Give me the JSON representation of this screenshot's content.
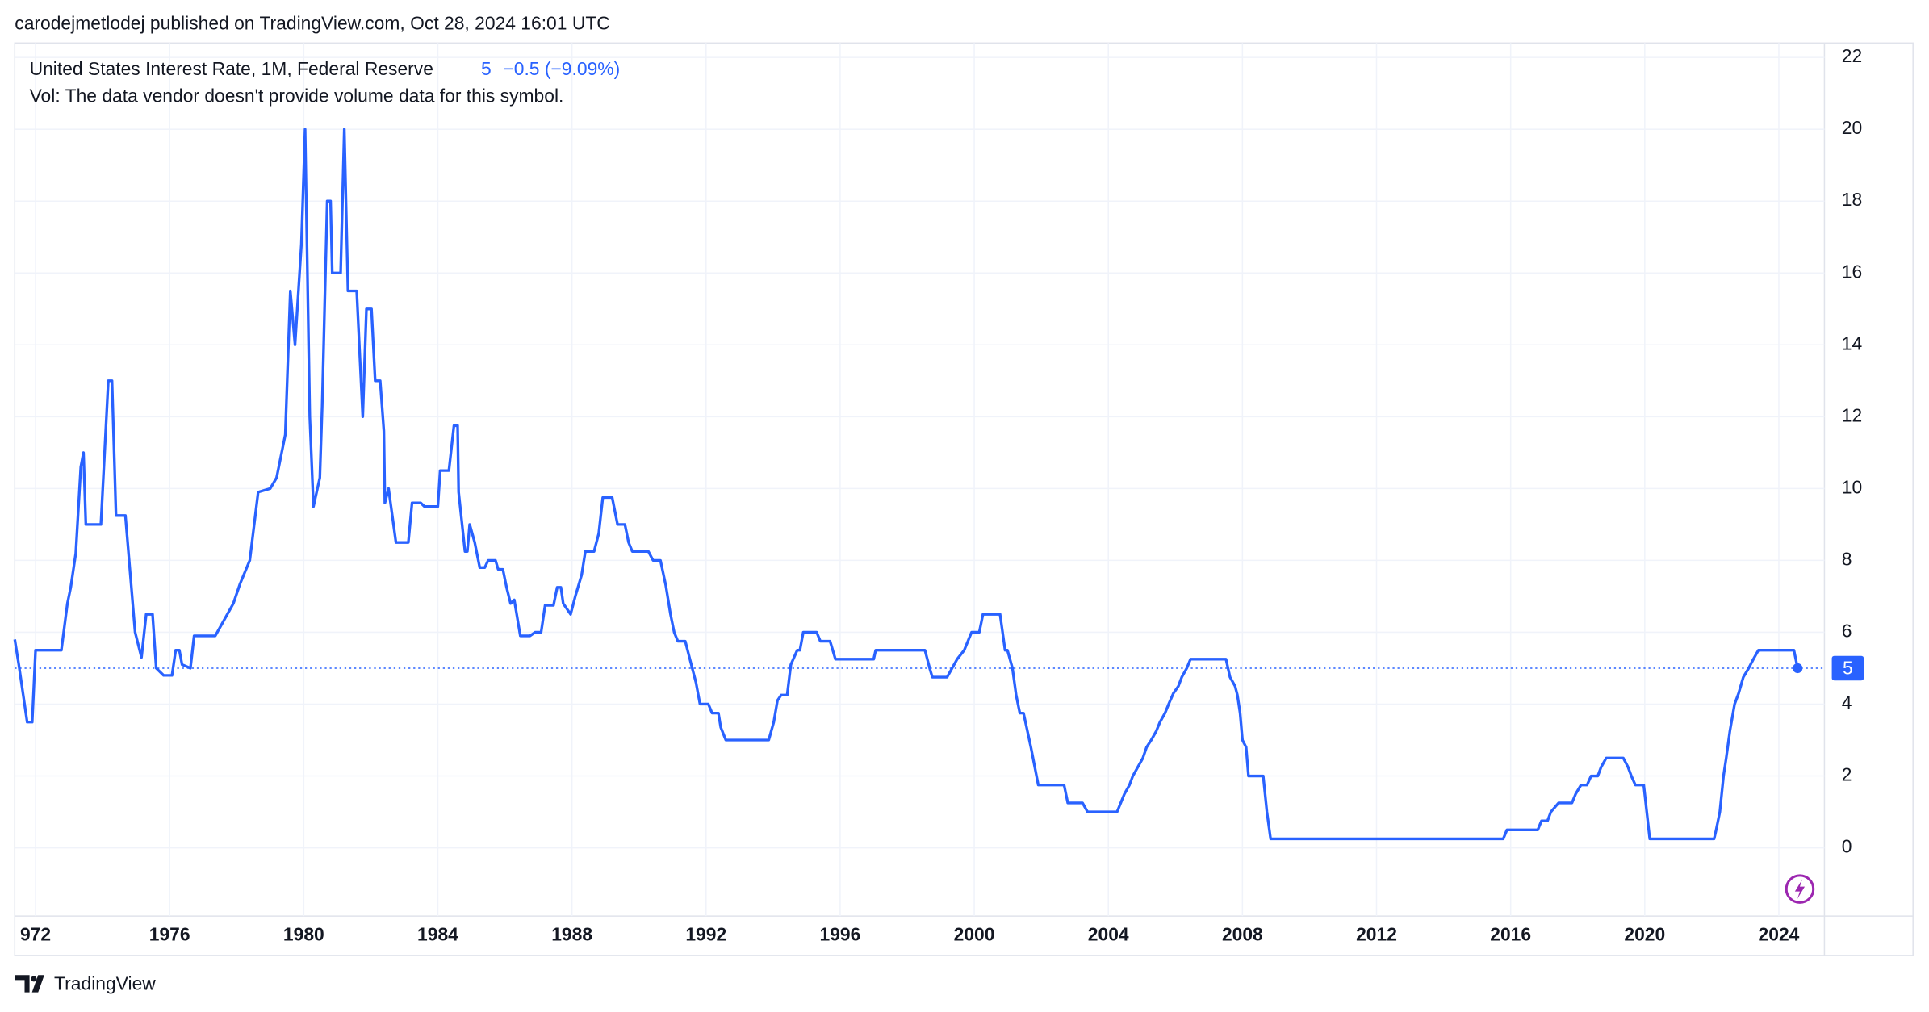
{
  "header": "carodejmetlodej published on TradingView.com, Oct 28, 2024 16:01 UTC",
  "footer": "TradingView",
  "chart_data": {
    "type": "line",
    "title": "United States Interest Rate, 1M, Federal Reserve",
    "change": "−0.5 (−9.09%)",
    "note": "Vol: The data vendor doesn't provide volume data for this symbol.",
    "x": [
      1971.38,
      1971.5,
      1971.75,
      1971.9,
      1972.0,
      1972.77,
      1972.95,
      1973.05,
      1973.2,
      1973.35,
      1973.43,
      1973.5,
      1973.95,
      1974.17,
      1974.28,
      1974.4,
      1974.68,
      1974.97,
      1975.16,
      1975.3,
      1975.49,
      1975.6,
      1975.82,
      1976.07,
      1976.18,
      1976.29,
      1976.37,
      1976.62,
      1976.73,
      1977.36,
      1977.72,
      1977.9,
      1978.1,
      1978.39,
      1978.64,
      1979.0,
      1979.19,
      1979.45,
      1979.6,
      1979.74,
      1979.93,
      1980.04,
      1980.18,
      1980.29,
      1980.48,
      1980.55,
      1980.7,
      1980.8,
      1980.85,
      1981.1,
      1981.21,
      1981.32,
      1981.58,
      1981.76,
      1981.87,
      1982.02,
      1982.13,
      1982.28,
      1982.39,
      1982.42,
      1982.53,
      1982.75,
      1983.12,
      1983.23,
      1983.49,
      1983.6,
      1984.0,
      1984.07,
      1984.33,
      1984.48,
      1984.59,
      1984.62,
      1984.81,
      1984.88,
      1984.95,
      1985.1,
      1985.25,
      1985.4,
      1985.5,
      1985.72,
      1985.8,
      1985.94,
      1986.05,
      1986.17,
      1986.28,
      1986.46,
      1986.75,
      1986.9,
      1987.08,
      1987.2,
      1987.45,
      1987.56,
      1987.67,
      1987.74,
      1987.96,
      1988.1,
      1988.29,
      1988.4,
      1988.66,
      1988.8,
      1988.92,
      1989.2,
      1989.36,
      1989.58,
      1989.69,
      1989.8,
      1990.28,
      1990.42,
      1990.64,
      1990.8,
      1990.94,
      1991.05,
      1991.16,
      1991.38,
      1991.56,
      1991.7,
      1991.82,
      1992.07,
      1992.18,
      1992.37,
      1992.44,
      1992.59,
      1993.87,
      1994.02,
      1994.13,
      1994.24,
      1994.42,
      1994.53,
      1994.72,
      1994.8,
      1994.9,
      1995.3,
      1995.41,
      1995.7,
      1995.86,
      1997.0,
      1997.06,
      1998.53,
      1998.67,
      1998.75,
      1999.19,
      1999.34,
      1999.49,
      1999.7,
      1999.92,
      2000.15,
      2000.26,
      2000.77,
      2000.92,
      2000.99,
      2001.14,
      2001.25,
      2001.36,
      2001.47,
      2001.69,
      2001.91,
      2002.68,
      2002.79,
      2003.23,
      2003.38,
      2004.26,
      2004.37,
      2004.48,
      2004.63,
      2004.73,
      2004.88,
      2005.03,
      2005.14,
      2005.28,
      2005.43,
      2005.54,
      2005.69,
      2005.8,
      2005.94,
      2006.09,
      2006.19,
      2006.34,
      2006.45,
      2007.51,
      2007.63,
      2007.78,
      2007.85,
      2007.93,
      2008.0,
      2008.11,
      2008.18,
      2008.62,
      2008.73,
      2008.84,
      2015.78,
      2015.89,
      2016.81,
      2016.92,
      2017.1,
      2017.2,
      2017.43,
      2017.83,
      2017.94,
      2018.1,
      2018.28,
      2018.4,
      2018.6,
      2018.7,
      2018.85,
      2019.36,
      2019.5,
      2019.6,
      2019.72,
      2019.97,
      2020.15,
      2022.07,
      2022.13,
      2022.24,
      2022.35,
      2022.43,
      2022.54,
      2022.68,
      2022.8,
      2022.94,
      2023.1,
      2023.24,
      2023.39,
      2024.45,
      2024.56
    ],
    "series": [
      {
        "color": "#2962ff",
        "values": [
          5.8,
          5.1,
          3.5,
          3.5,
          5.5,
          5.5,
          6.8,
          7.25,
          8.2,
          10.6,
          11,
          9,
          9,
          13,
          13,
          9.25,
          9.25,
          6,
          5.3,
          6.5,
          6.5,
          5,
          4.8,
          4.8,
          5.5,
          5.5,
          5.1,
          5,
          5.9,
          5.9,
          6.5,
          6.8,
          7.35,
          8,
          9.9,
          10,
          10.3,
          11.5,
          15.5,
          14,
          16.8,
          20,
          12,
          9.5,
          10.3,
          12.3,
          18,
          18,
          16,
          16,
          20,
          15.5,
          15.5,
          12,
          15,
          15,
          13,
          13,
          11.6,
          9.6,
          10,
          8.5,
          8.5,
          9.6,
          9.6,
          9.5,
          9.5,
          10.5,
          10.5,
          11.75,
          11.75,
          9.9,
          8.25,
          8.25,
          9,
          8.5,
          7.8,
          7.8,
          8,
          8,
          7.75,
          7.75,
          7.25,
          6.8,
          6.9,
          5.9,
          5.9,
          6,
          6,
          6.75,
          6.75,
          7.25,
          7.25,
          6.8,
          6.5,
          7,
          7.6,
          8.25,
          8.25,
          8.75,
          9.75,
          9.75,
          9,
          9,
          8.5,
          8.25,
          8.25,
          8,
          8,
          7.3,
          6.5,
          6,
          5.75,
          5.75,
          5.1,
          4.6,
          4,
          4,
          3.75,
          3.75,
          3.35,
          3,
          3,
          3.5,
          4.1,
          4.25,
          4.25,
          5.1,
          5.5,
          5.5,
          6,
          6,
          5.75,
          5.75,
          5.25,
          5.25,
          5.5,
          5.5,
          5,
          4.75,
          4.75,
          5,
          5.25,
          5.5,
          6,
          6,
          6.5,
          6.5,
          5.5,
          5.5,
          5,
          4.25,
          3.75,
          3.75,
          2.8,
          1.75,
          1.75,
          1.25,
          1.25,
          1,
          1,
          1.25,
          1.5,
          1.75,
          2,
          2.25,
          2.5,
          2.8,
          3,
          3.25,
          3.5,
          3.75,
          4,
          4.3,
          4.5,
          4.75,
          5,
          5.25,
          5.25,
          4.75,
          4.5,
          4.25,
          3.75,
          3,
          2.8,
          2,
          2,
          1,
          0.25,
          0.25,
          0.5,
          0.5,
          0.75,
          0.75,
          1,
          1.25,
          1.25,
          1.5,
          1.75,
          1.75,
          2,
          2,
          2.25,
          2.5,
          2.5,
          2.25,
          2,
          1.75,
          1.75,
          0.25,
          0.25,
          0.5,
          1,
          2,
          2.5,
          3.25,
          4,
          4.3,
          4.75,
          5,
          5.25,
          5.5,
          5.5,
          5
        ]
      }
    ],
    "xlim": [
      1971.38,
      2025.36
    ],
    "xticks": [
      {
        "value": 1972,
        "label": "972"
      },
      1976,
      1980,
      1984,
      1988,
      1992,
      1996,
      2000,
      2004,
      2008,
      2012,
      2016,
      2020,
      2024
    ],
    "ylim": [
      -1.9,
      22.4
    ],
    "yticks": [
      0,
      2,
      4,
      6,
      8,
      10,
      12,
      14,
      16,
      18,
      20,
      22
    ],
    "grid": true
  }
}
